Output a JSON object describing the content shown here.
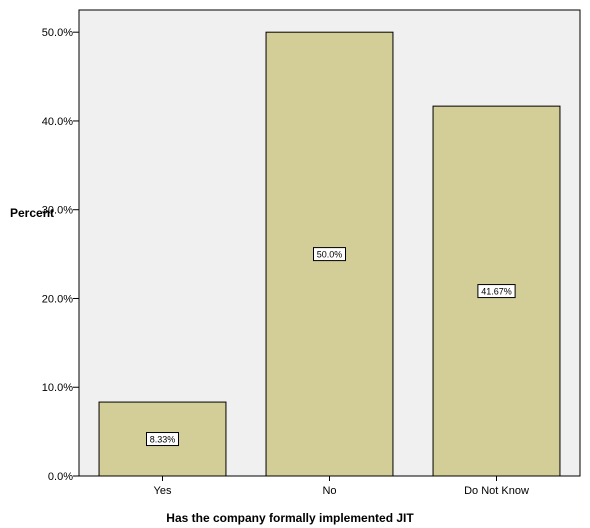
{
  "chart_data": {
    "type": "bar",
    "categories": [
      "Yes",
      "No",
      "Do Not Know"
    ],
    "values": [
      8.33,
      50.0,
      41.67
    ],
    "data_labels": [
      "8.33%",
      "50.0%",
      "41.67%"
    ],
    "xlabel": "Has the company formally implemented JIT",
    "ylabel": "Percent",
    "ylim": [
      0,
      52.5
    ],
    "yticks": [
      0,
      10,
      20,
      30,
      40,
      50
    ],
    "ytick_labels": [
      "0.0%",
      "10.0%",
      "20.0%",
      "30.0%",
      "40.0%",
      "50.0%"
    ],
    "grid": false,
    "colors": {
      "plot_background": "#f0f0f0",
      "bar_fill": "#d3ce98",
      "bar_stroke": "#000000"
    }
  }
}
